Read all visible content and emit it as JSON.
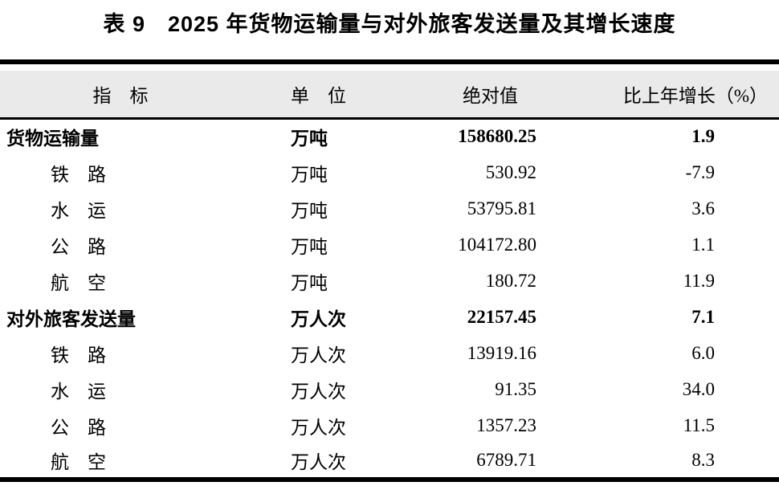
{
  "title": "表 9　2025 年货物运输量与对外旅客发送量及其增长速度",
  "table": {
    "columns": [
      "指　标",
      "单　位",
      "绝对值",
      "比上年增长（%）"
    ],
    "rows": [
      {
        "indicator": "货物运输量",
        "unit": "万吨",
        "value": "158680.25",
        "growth": "1.9",
        "bold": true,
        "indent": false
      },
      {
        "indicator": "铁　路",
        "unit": "万吨",
        "value": "530.92",
        "growth": "-7.9",
        "bold": false,
        "indent": true
      },
      {
        "indicator": "水　运",
        "unit": "万吨",
        "value": "53795.81",
        "growth": "3.6",
        "bold": false,
        "indent": true
      },
      {
        "indicator": "公　路",
        "unit": "万吨",
        "value": "104172.80",
        "growth": "1.1",
        "bold": false,
        "indent": true
      },
      {
        "indicator": "航　空",
        "unit": "万吨",
        "value": "180.72",
        "growth": "11.9",
        "bold": false,
        "indent": true
      },
      {
        "indicator": "对外旅客发送量",
        "unit": "万人次",
        "value": "22157.45",
        "growth": "7.1",
        "bold": true,
        "indent": false
      },
      {
        "indicator": "铁　路",
        "unit": "万人次",
        "value": "13919.16",
        "growth": "6.0",
        "bold": false,
        "indent": true
      },
      {
        "indicator": "水　运",
        "unit": "万人次",
        "value": "91.35",
        "growth": "34.0",
        "bold": false,
        "indent": true
      },
      {
        "indicator": "公　路",
        "unit": "万人次",
        "value": "1357.23",
        "growth": "11.5",
        "bold": false,
        "indent": true
      },
      {
        "indicator": "航　空",
        "unit": "万人次",
        "value": "6789.71",
        "growth": "8.3",
        "bold": false,
        "indent": true
      }
    ]
  }
}
